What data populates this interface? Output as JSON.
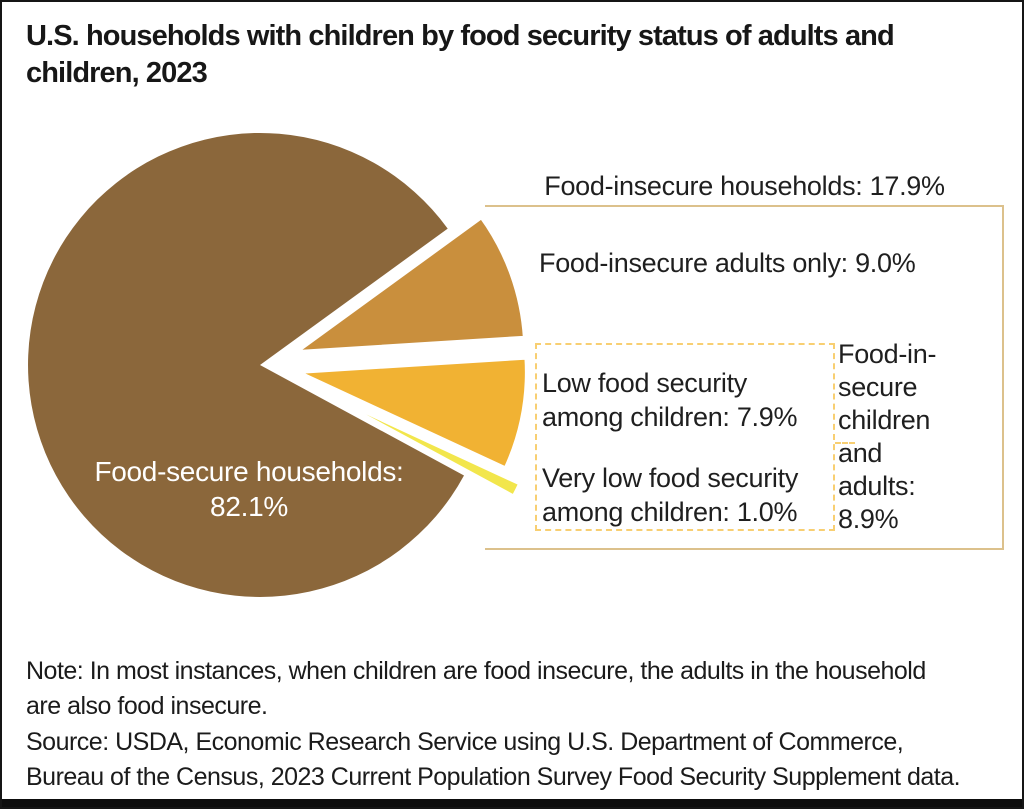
{
  "title": "U.S. households with children by food security status of adults and\nchildren, 2023",
  "chart_data": {
    "type": "pie",
    "title": "U.S. households with children by food security status of adults and children, 2023",
    "slices": [
      {
        "label": "Food-secure households",
        "value": 82.1,
        "color": "#8B673B",
        "explode": 0,
        "gap_stroke": 0
      },
      {
        "label": "Food-insecure adults only",
        "value": 9.0,
        "color": "#C98F3D",
        "explode": 36,
        "gap_stroke": 5
      },
      {
        "label": "Low food security among children",
        "value": 7.9,
        "color": "#F1B233",
        "explode": 36,
        "gap_stroke": 5
      },
      {
        "label": "Very low food security among children",
        "value": 1.0,
        "color": "#F2E64C",
        "explode": 54,
        "explode_dir_deg": 23,
        "gap_stroke": 4
      }
    ],
    "groups": [
      {
        "label": "Food-insecure households",
        "value": 17.9
      },
      {
        "label": "Food-insecure children and adults",
        "value": 8.9
      }
    ],
    "layout": {
      "center": [
        258,
        363
      ],
      "radius": 232,
      "start_angle_deg": 28.44,
      "clockwise": true,
      "legend_position": "none",
      "grid": false
    },
    "colors": {
      "solid_box_border": "#DCC18C",
      "dashed_box_border": "#F8CF72",
      "slice_gap": "#ffffff"
    }
  },
  "annotations": {
    "insecure_households": "Food-insecure households: 17.9%",
    "adults_only": "Food-insecure adults only: 9.0%",
    "low_children": "Low food security\namong children: 7.9%",
    "very_low_children": "Very low food security\namong children: 1.0%",
    "children_and_adults": "Food-in-\nsecure\nchildren\nand\nadults:\n8.9%",
    "food_secure": "Food-secure households:\n82.1%"
  },
  "note": "Note: In most instances, when children are food insecure, the adults in the household\nare also food insecure.",
  "source": "Source: USDA, Economic Research Service using U.S. Department of Commerce,\nBureau of the Census, 2023 Current Population Survey Food Security Supplement data."
}
